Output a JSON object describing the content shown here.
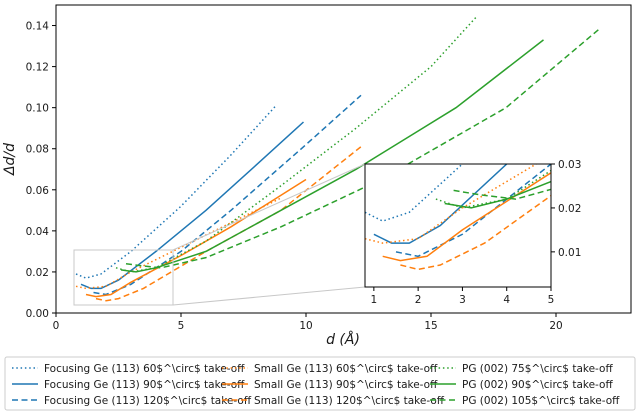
{
  "chart_data": {
    "type": "line",
    "xlabel": "d (Å)",
    "ylabel": "Δd/d",
    "xlim": [
      0,
      23
    ],
    "ylim": [
      0,
      0.15
    ],
    "xticks": [
      "0",
      "5",
      "10",
      "15",
      "20"
    ],
    "yticks": [
      "0.00",
      "0.02",
      "0.04",
      "0.06",
      "0.08",
      "0.10",
      "0.12",
      "0.14"
    ],
    "grid": false,
    "legend_position": "bottom",
    "colors": {
      "focusing": "#1f77b4",
      "small": "#ff7f0e",
      "pg": "#2ca02c"
    },
    "series": [
      {
        "name": "Focusing Ge (113) 60$^\\circ$ take-off",
        "color": "#1f77b4",
        "style": "dotted",
        "x": [
          0.8,
          1.2,
          1.8,
          3.0,
          5.0,
          7.0,
          8.8
        ],
        "y": [
          0.019,
          0.017,
          0.019,
          0.03,
          0.052,
          0.077,
          0.101
        ]
      },
      {
        "name": "Focusing Ge (113) 90$^\\circ$ take-off",
        "color": "#1f77b4",
        "style": "solid",
        "x": [
          1.0,
          1.4,
          1.8,
          2.5,
          4.0,
          6.0,
          8.0,
          9.9
        ],
        "y": [
          0.014,
          0.012,
          0.012,
          0.016,
          0.03,
          0.05,
          0.072,
          0.093
        ]
      },
      {
        "name": "Focusing Ge (113) 120$^\\circ$ take-off",
        "color": "#1f77b4",
        "style": "dashed",
        "x": [
          1.5,
          2.0,
          3.0,
          5.0,
          7.0,
          10.0,
          12.2
        ],
        "y": [
          0.01,
          0.009,
          0.014,
          0.03,
          0.05,
          0.082,
          0.106
        ]
      },
      {
        "name": "Small Ge (113) 60$^\\circ$ take-off",
        "color": "#ff7f0e",
        "style": "dotted",
        "x": [
          0.8,
          1.2,
          2.0,
          3.0,
          5.0,
          7.0,
          9.0
        ],
        "y": [
          0.013,
          0.012,
          0.013,
          0.02,
          0.032,
          0.044,
          0.056
        ]
      },
      {
        "name": "Small Ge (113) 90$^\\circ$ take-off",
        "color": "#ff7f0e",
        "style": "solid",
        "x": [
          1.2,
          1.6,
          2.2,
          3.0,
          5.0,
          7.0,
          10.0
        ],
        "y": [
          0.009,
          0.008,
          0.009,
          0.015,
          0.028,
          0.042,
          0.065
        ]
      },
      {
        "name": "Small Ge (113) 120$^\\circ$ take-off",
        "color": "#ff7f0e",
        "style": "dashed",
        "x": [
          1.6,
          2.0,
          2.5,
          3.5,
          6.0,
          9.0,
          12.2
        ],
        "y": [
          0.007,
          0.006,
          0.007,
          0.012,
          0.03,
          0.05,
          0.081
        ]
      },
      {
        "name": "PG (002) 75$^\\circ$ take-off",
        "color": "#2ca02c",
        "style": "dotted",
        "x": [
          2.4,
          3.0,
          4.0,
          6.0,
          9.0,
          12.0,
          15.0,
          16.8
        ],
        "y": [
          0.022,
          0.02,
          0.022,
          0.035,
          0.062,
          0.09,
          0.12,
          0.144
        ]
      },
      {
        "name": "PG (002) 90$^\\circ$ take-off",
        "color": "#2ca02c",
        "style": "solid",
        "x": [
          2.6,
          3.2,
          4.0,
          6.0,
          9.0,
          12.0,
          16.0,
          19.5
        ],
        "y": [
          0.021,
          0.02,
          0.022,
          0.03,
          0.05,
          0.07,
          0.1,
          0.133
        ]
      },
      {
        "name": "PG (002) 105$^\\circ$ take-off",
        "color": "#2ca02c",
        "style": "dashed",
        "x": [
          2.8,
          3.4,
          4.2,
          6.0,
          9.0,
          13.0,
          18.0,
          21.8
        ],
        "y": [
          0.024,
          0.023,
          0.022,
          0.027,
          0.042,
          0.065,
          0.1,
          0.139
        ]
      }
    ],
    "inset": {
      "xlim": [
        0.8,
        5
      ],
      "ylim": [
        0.002,
        0.03
      ],
      "xticks": [
        "1",
        "2",
        "3",
        "4",
        "5"
      ],
      "yticks": [
        "0.01",
        "0.02",
        "0.03"
      ]
    }
  }
}
